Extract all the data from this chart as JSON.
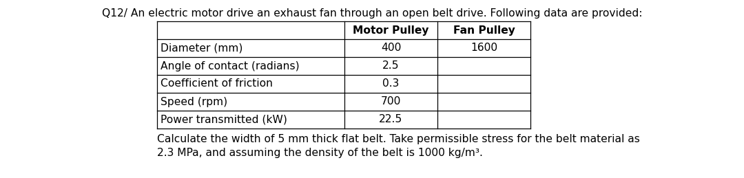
{
  "title": "Q12/ An electric motor drive an exhaust fan through an open belt drive. Following data are provided:",
  "col_headers": [
    "",
    "Motor Pulley",
    "Fan Pulley"
  ],
  "rows": [
    [
      "Diameter (mm)",
      "400",
      "1600"
    ],
    [
      "Angle of contact (radians)",
      "2.5",
      ""
    ],
    [
      "Coefficient of friction",
      "0.3",
      ""
    ],
    [
      "Speed (rpm)",
      "700",
      ""
    ],
    [
      "Power transmitted (kW)",
      "22.5",
      ""
    ]
  ],
  "footer_line1": "Calculate the width of 5 mm thick flat belt. Take permissible stress for the belt material as",
  "footer_line2": "2.3 MPa, and assuming the density of the belt is 1000 kg/m³.",
  "bg_color": "#ffffff",
  "text_color": "#000000",
  "title_fontsize": 11.2,
  "body_fontsize": 11.2,
  "footer_fontsize": 11.2
}
